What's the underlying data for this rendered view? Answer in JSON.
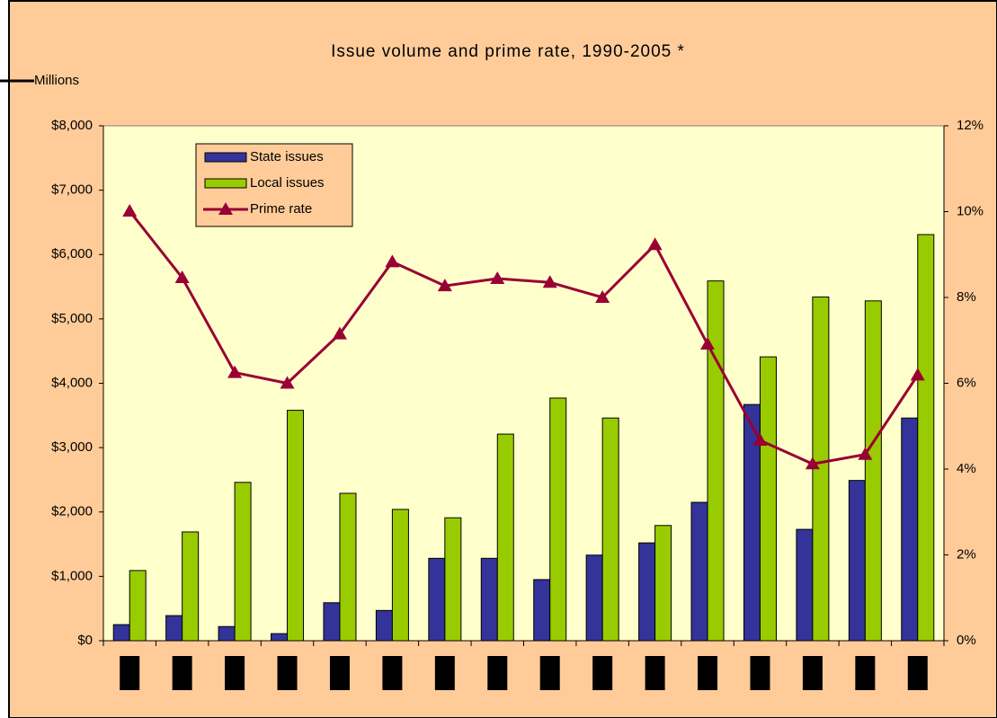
{
  "chart_data": {
    "type": "bar-line",
    "title": "Issue volume and prime rate, 1990-2005 *",
    "y_label": "Millions",
    "categories": [
      null,
      null,
      null,
      null,
      null,
      null,
      null,
      null,
      null,
      null,
      null,
      null,
      null,
      null,
      null,
      null
    ],
    "series": [
      {
        "name": "State issues",
        "color": "#333399",
        "values": [
          250,
          390,
          220,
          110,
          590,
          470,
          1280,
          1280,
          950,
          1330,
          1520,
          2150,
          3670,
          1730,
          2490,
          3460
        ]
      },
      {
        "name": "Local issues",
        "color": "#99cc00",
        "values": [
          1090,
          1690,
          2460,
          3580,
          2290,
          2040,
          1910,
          3210,
          3770,
          3460,
          1790,
          5590,
          4410,
          5340,
          5280,
          6310
        ]
      },
      {
        "name": "Prime rate",
        "color": "#990033",
        "axis": "y2",
        "values": [
          10.01,
          8.46,
          6.25,
          6.0,
          7.15,
          8.83,
          8.27,
          8.44,
          8.35,
          8.0,
          9.23,
          6.91,
          4.67,
          4.12,
          4.34,
          6.19
        ]
      }
    ],
    "ylim": [
      0,
      8000
    ],
    "yticks": [
      {
        "value": 0,
        "label": "$0"
      },
      {
        "value": 1000,
        "label": "$1,000"
      },
      {
        "value": 2000,
        "label": "$2,000"
      },
      {
        "value": 3000,
        "label": "$3,000"
      },
      {
        "value": 4000,
        "label": "$4,000"
      },
      {
        "value": 5000,
        "label": "$5,000"
      },
      {
        "value": 6000,
        "label": "$6,000"
      },
      {
        "value": 7000,
        "label": "$7,000"
      },
      {
        "value": 8000,
        "label": "$8,000"
      }
    ],
    "y2lim": [
      0,
      12
    ],
    "y2ticks": [
      {
        "value": 0,
        "label": "0%"
      },
      {
        "value": 2,
        "label": "2%"
      },
      {
        "value": 4,
        "label": "4%"
      },
      {
        "value": 6,
        "label": "6%"
      },
      {
        "value": 8,
        "label": "8%"
      },
      {
        "value": 10,
        "label": "10%"
      },
      {
        "value": 12,
        "label": "12%"
      }
    ],
    "legend": "upper left"
  }
}
